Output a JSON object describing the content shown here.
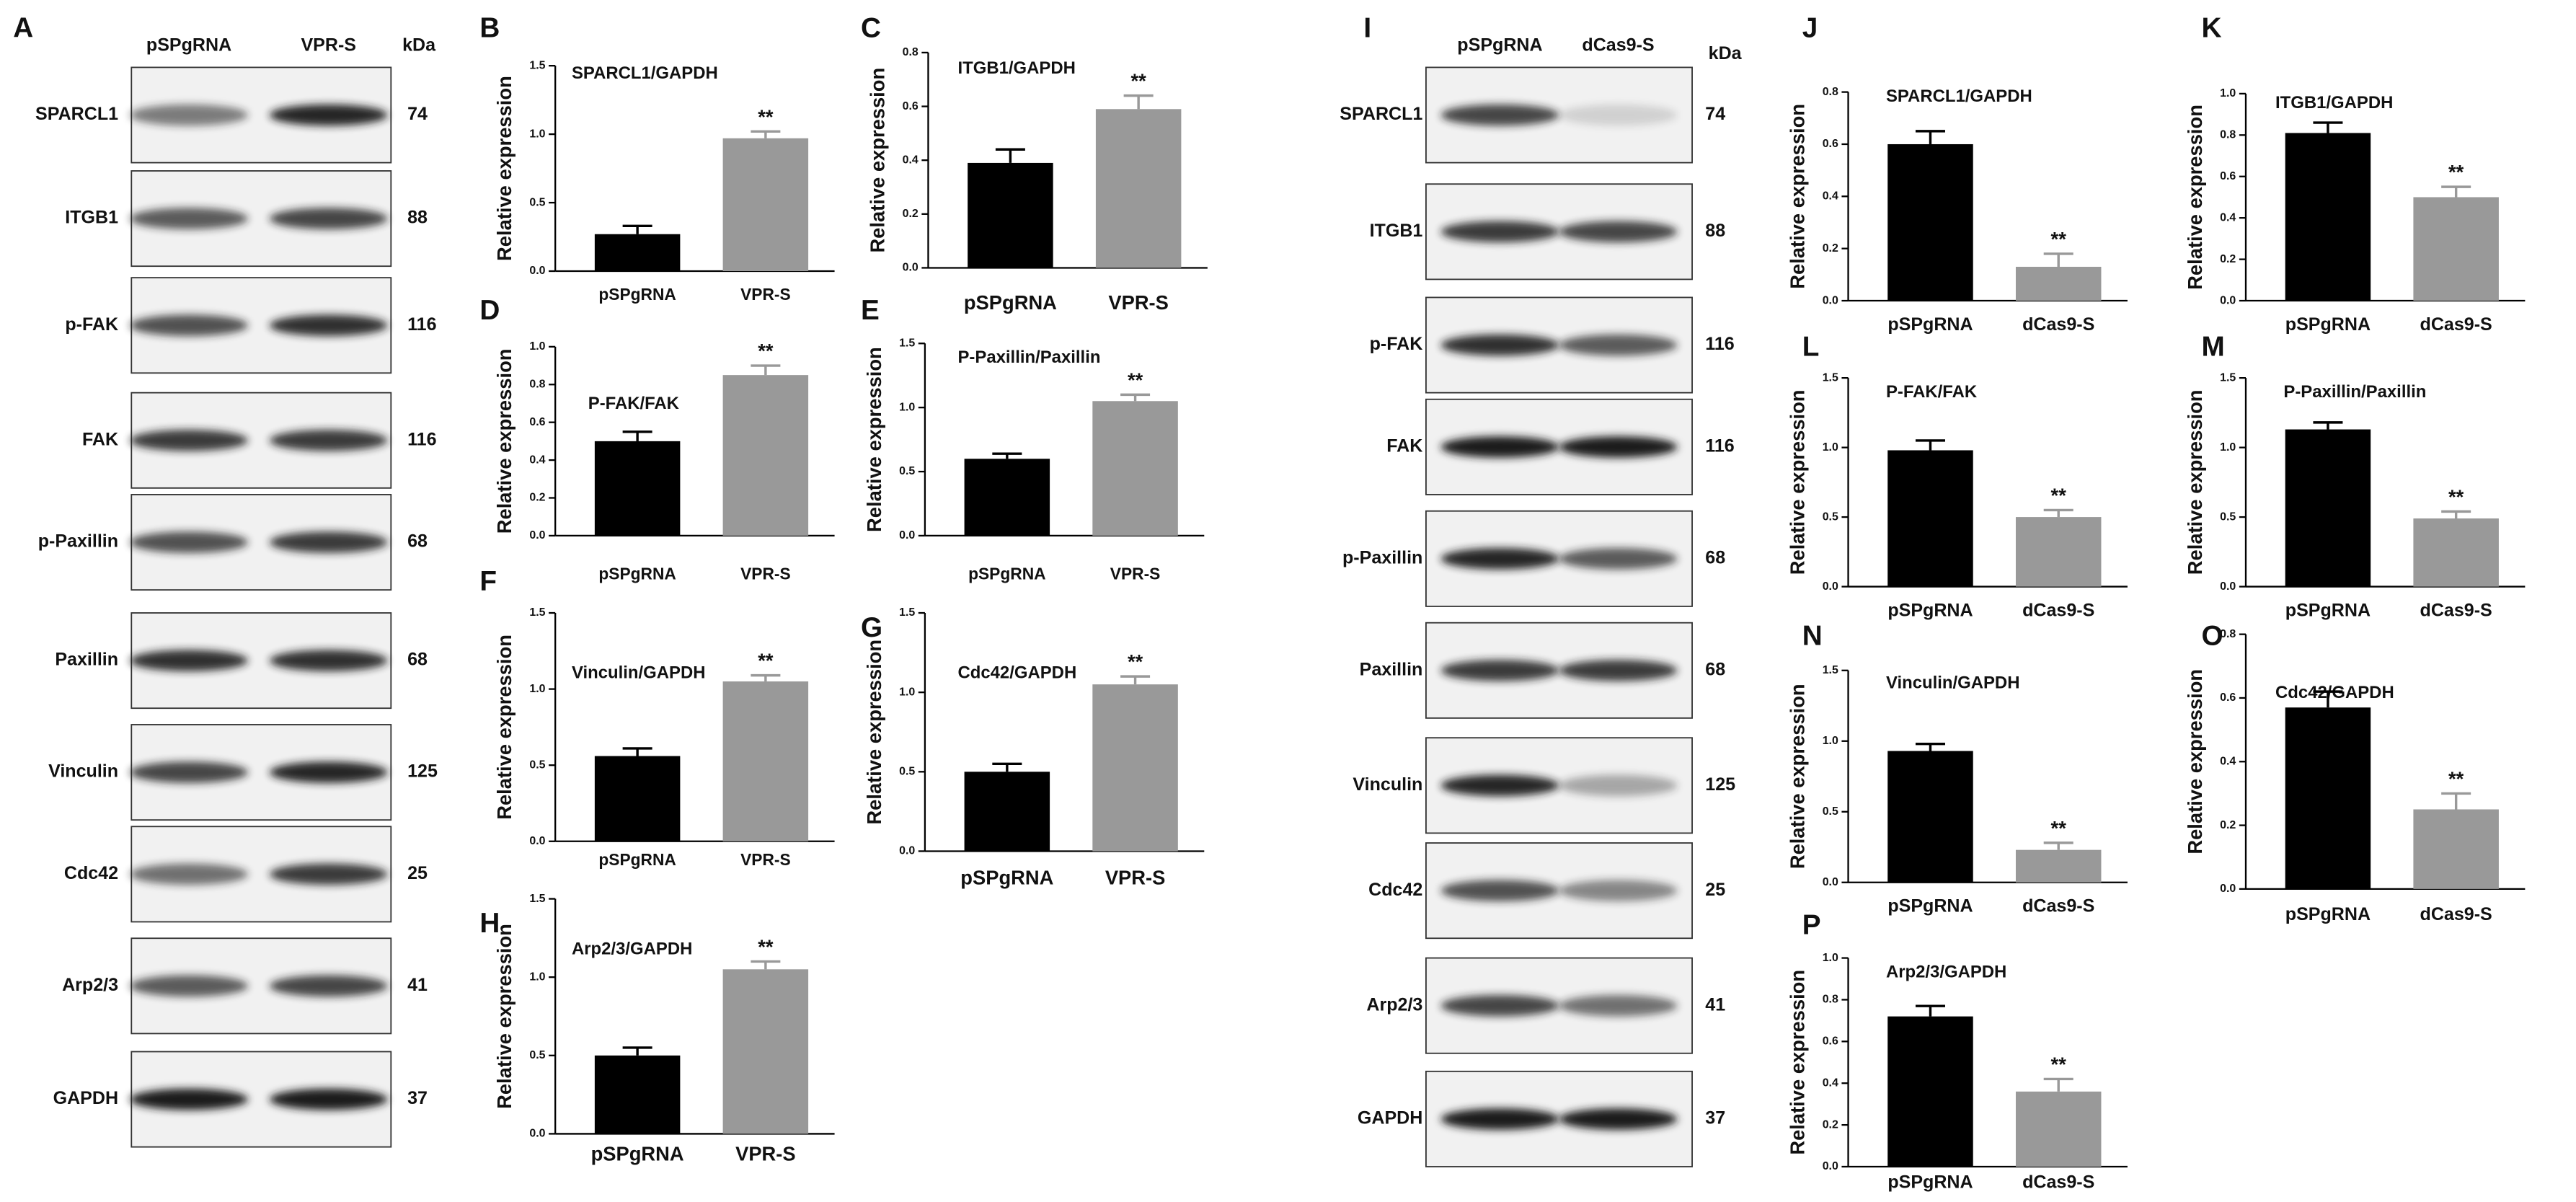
{
  "blots": [
    {
      "panel": "A",
      "lanes": [
        "pSPgRNA",
        "VPR-S"
      ],
      "unit": "kDa",
      "rows": [
        {
          "protein": "SPARCL1",
          "kda": 74
        },
        {
          "protein": "ITGB1",
          "kda": 88
        },
        {
          "protein": "p-FAK",
          "kda": 116
        },
        {
          "protein": "FAK",
          "kda": 116
        },
        {
          "protein": "p-Paxillin",
          "kda": 68
        },
        {
          "protein": "Paxillin",
          "kda": 68
        },
        {
          "protein": "Vinculin",
          "kda": 125
        },
        {
          "protein": "Cdc42",
          "kda": 25
        },
        {
          "protein": "Arp2/3",
          "kda": 41
        },
        {
          "protein": "GAPDH",
          "kda": 37
        }
      ]
    },
    {
      "panel": "I",
      "lanes": [
        "pSPgRNA",
        "dCas9-S"
      ],
      "unit": "kDa",
      "rows": [
        {
          "protein": "SPARCL1",
          "kda": 74
        },
        {
          "protein": "ITGB1",
          "kda": 88
        },
        {
          "protein": "p-FAK",
          "kda": 116
        },
        {
          "protein": "FAK",
          "kda": 116
        },
        {
          "protein": "p-Paxillin",
          "kda": 68
        },
        {
          "protein": "Paxillin",
          "kda": 68
        },
        {
          "protein": "Vinculin",
          "kda": 125
        },
        {
          "protein": "Cdc42",
          "kda": 25
        },
        {
          "protein": "Arp2/3",
          "kda": 41
        },
        {
          "protein": "GAPDH",
          "kda": 37
        }
      ]
    }
  ],
  "chart_data": [
    {
      "panel": "B",
      "type": "bar",
      "title": "SPARCL1/GAPDH",
      "ylabel": "Relative expression",
      "categories": [
        "pSPgRNA",
        "VPR-S"
      ],
      "values": [
        0.27,
        0.97
      ],
      "errors": [
        0.06,
        0.05
      ],
      "colors": [
        "#000000",
        "#999999"
      ],
      "annotation": "**",
      "ylim": [
        0,
        1.5
      ],
      "yticks": [
        {
          "value": 0,
          "label": "0.0"
        },
        0.5,
        {
          "value": 1,
          "label": "1.0"
        },
        1.5
      ]
    },
    {
      "panel": "C",
      "type": "bar",
      "title": "ITGB1/GAPDH",
      "ylabel": "Relative expression",
      "categories": [
        "pSPgRNA",
        "VPR-S"
      ],
      "values": [
        0.39,
        0.59
      ],
      "errors": [
        0.05,
        0.05
      ],
      "colors": [
        "#000000",
        "#999999"
      ],
      "annotation": "**",
      "ylim": [
        0,
        0.8
      ],
      "yticks": [
        {
          "value": 0,
          "label": "0.0"
        },
        0.2,
        0.4,
        0.6,
        0.8
      ]
    },
    {
      "panel": "D",
      "type": "bar",
      "title": "P-FAK/FAK",
      "ylabel": "Relative expression",
      "categories": [
        "pSPgRNA",
        "VPR-S"
      ],
      "values": [
        0.5,
        0.85
      ],
      "errors": [
        0.05,
        0.05
      ],
      "colors": [
        "#000000",
        "#999999"
      ],
      "annotation": "**",
      "ylim": [
        0,
        1
      ],
      "yticks": [
        {
          "value": 0,
          "label": "0.0"
        },
        0.2,
        0.4,
        0.6,
        0.8,
        {
          "value": 1,
          "label": "1.0"
        }
      ]
    },
    {
      "panel": "E",
      "type": "bar",
      "title": "P-Paxillin/Paxillin",
      "ylabel": "Relative expression",
      "categories": [
        "pSPgRNA",
        "VPR-S"
      ],
      "values": [
        0.6,
        1.05
      ],
      "errors": [
        0.04,
        0.05
      ],
      "colors": [
        "#000000",
        "#999999"
      ],
      "annotation": "**",
      "ylim": [
        0,
        1.5
      ],
      "yticks": [
        {
          "value": 0,
          "label": "0.0"
        },
        0.5,
        {
          "value": 1,
          "label": "1.0"
        },
        1.5
      ]
    },
    {
      "panel": "F",
      "type": "bar",
      "title": "Vinculin/GAPDH",
      "ylabel": "Relative expression",
      "categories": [
        "pSPgRNA",
        "VPR-S"
      ],
      "values": [
        0.56,
        1.05
      ],
      "errors": [
        0.05,
        0.04
      ],
      "colors": [
        "#000000",
        "#999999"
      ],
      "annotation": "**",
      "ylim": [
        0,
        1.5
      ],
      "yticks": [
        {
          "value": 0,
          "label": "0.0"
        },
        0.5,
        {
          "value": 1,
          "label": "1.0"
        },
        1.5
      ]
    },
    {
      "panel": "G",
      "type": "bar",
      "title": "Cdc42/GAPDH",
      "ylabel": "Relative expression",
      "categories": [
        "pSPgRNA",
        "VPR-S"
      ],
      "values": [
        0.5,
        1.05
      ],
      "errors": [
        0.05,
        0.05
      ],
      "colors": [
        "#000000",
        "#999999"
      ],
      "annotation": "**",
      "ylim": [
        0,
        1.5
      ],
      "yticks": [
        {
          "value": 0,
          "label": "0.0"
        },
        0.5,
        {
          "value": 1,
          "label": "1.0"
        },
        1.5
      ]
    },
    {
      "panel": "H",
      "type": "bar",
      "title": "Arp2/3/GAPDH",
      "ylabel": "Relative expression",
      "categories": [
        "pSPgRNA",
        "VPR-S"
      ],
      "values": [
        0.5,
        1.05
      ],
      "errors": [
        0.05,
        0.05
      ],
      "colors": [
        "#000000",
        "#999999"
      ],
      "annotation": "**",
      "ylim": [
        0,
        1.5
      ],
      "yticks": [
        {
          "value": 0,
          "label": "0.0"
        },
        0.5,
        {
          "value": 1,
          "label": "1.0"
        },
        1.5
      ]
    },
    {
      "panel": "J",
      "type": "bar",
      "title": "SPARCL1/GAPDH",
      "ylabel": "Relative expression",
      "categories": [
        "pSPgRNA",
        "dCas9-S"
      ],
      "values": [
        0.6,
        0.13
      ],
      "errors": [
        0.05,
        0.05
      ],
      "colors": [
        "#000000",
        "#999999"
      ],
      "annotation": "**",
      "ylim": [
        0,
        0.8
      ],
      "yticks": [
        {
          "value": 0,
          "label": "0.0"
        },
        0.2,
        0.4,
        0.6,
        0.8
      ]
    },
    {
      "panel": "K",
      "type": "bar",
      "title": "ITGB1/GAPDH",
      "ylabel": "Relative expression",
      "categories": [
        "pSPgRNA",
        "dCas9-S"
      ],
      "values": [
        0.81,
        0.5
      ],
      "errors": [
        0.05,
        0.05
      ],
      "colors": [
        "#000000",
        "#999999"
      ],
      "annotation": "**",
      "ylim": [
        0,
        1
      ],
      "yticks": [
        {
          "value": 0,
          "label": "0.0"
        },
        0.2,
        0.4,
        0.6,
        0.8,
        {
          "value": 1,
          "label": "1.0"
        }
      ]
    },
    {
      "panel": "L",
      "type": "bar",
      "title": "P-FAK/FAK",
      "ylabel": "Relative expression",
      "categories": [
        "pSPgRNA",
        "dCas9-S"
      ],
      "values": [
        0.98,
        0.5
      ],
      "errors": [
        0.07,
        0.05
      ],
      "colors": [
        "#000000",
        "#999999"
      ],
      "annotation": "**",
      "ylim": [
        0,
        1.5
      ],
      "yticks": [
        {
          "value": 0,
          "label": "0.0"
        },
        0.5,
        {
          "value": 1,
          "label": "1.0"
        },
        1.5
      ]
    },
    {
      "panel": "M",
      "type": "bar",
      "title": "P-Paxillin/Paxillin",
      "ylabel": "Relative expression",
      "categories": [
        "pSPgRNA",
        "dCas9-S"
      ],
      "values": [
        1.13,
        0.49
      ],
      "errors": [
        0.05,
        0.05
      ],
      "colors": [
        "#000000",
        "#999999"
      ],
      "annotation": "**",
      "ylim": [
        0,
        1.5
      ],
      "yticks": [
        {
          "value": 0,
          "label": "0.0"
        },
        0.5,
        {
          "value": 1,
          "label": "1.0"
        },
        1.5
      ]
    },
    {
      "panel": "N",
      "type": "bar",
      "title": "Vinculin/GAPDH",
      "ylabel": "Relative expression",
      "categories": [
        "pSPgRNA",
        "dCas9-S"
      ],
      "values": [
        0.93,
        0.23
      ],
      "errors": [
        0.05,
        0.05
      ],
      "colors": [
        "#000000",
        "#999999"
      ],
      "annotation": "**",
      "ylim": [
        0,
        1.5
      ],
      "yticks": [
        {
          "value": 0,
          "label": "0.0"
        },
        0.5,
        {
          "value": 1,
          "label": "1.0"
        },
        1.5
      ]
    },
    {
      "panel": "O",
      "type": "bar",
      "title": "Cdc42/GAPDH",
      "ylabel": "Relative expression",
      "categories": [
        "pSPgRNA",
        "dCas9-S"
      ],
      "values": [
        0.57,
        0.25
      ],
      "errors": [
        0.05,
        0.05
      ],
      "colors": [
        "#000000",
        "#999999"
      ],
      "annotation": "**",
      "ylim": [
        0,
        0.8
      ],
      "yticks": [
        {
          "value": 0,
          "label": "0.0"
        },
        0.2,
        0.4,
        0.6,
        0.8
      ]
    },
    {
      "panel": "P",
      "type": "bar",
      "title": "Arp2/3/GAPDH",
      "ylabel": "Relative expression",
      "categories": [
        "pSPgRNA",
        "dCas9-S"
      ],
      "values": [
        0.72,
        0.36
      ],
      "errors": [
        0.05,
        0.06
      ],
      "colors": [
        "#000000",
        "#999999"
      ],
      "annotation": "**",
      "ylim": [
        0,
        1
      ],
      "yticks": [
        {
          "value": 0,
          "label": "0.0"
        },
        0.2,
        0.4,
        0.6,
        0.8,
        {
          "value": 1,
          "label": "1.0"
        }
      ]
    }
  ]
}
